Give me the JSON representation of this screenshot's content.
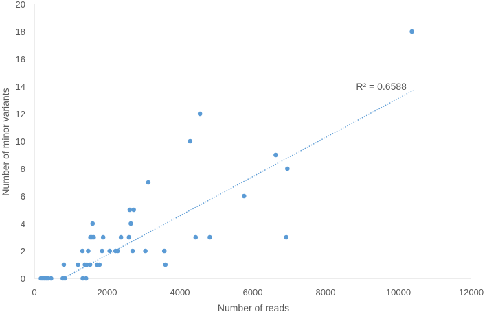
{
  "chart_data": {
    "type": "scatter",
    "xlabel": "Number of reads",
    "ylabel": "Number of minor variants",
    "xlim": [
      0,
      12000
    ],
    "ylim": [
      0,
      20
    ],
    "x_ticks": [
      0,
      2000,
      4000,
      6000,
      8000,
      10000,
      12000
    ],
    "y_ticks": [
      0,
      2,
      4,
      6,
      8,
      10,
      12,
      14,
      16,
      18,
      20
    ],
    "grid": false,
    "colors": {
      "points": "#5b9bd5",
      "trendline": "#5b9bd5",
      "axis": "#d9d9d9",
      "text": "#595959"
    },
    "series": [
      {
        "points": [
          [
            180,
            0
          ],
          [
            230,
            0
          ],
          [
            280,
            0
          ],
          [
            330,
            0
          ],
          [
            380,
            0
          ],
          [
            460,
            0
          ],
          [
            780,
            0
          ],
          [
            840,
            0
          ],
          [
            810,
            1
          ],
          [
            1200,
            1
          ],
          [
            1320,
            2
          ],
          [
            1330,
            0
          ],
          [
            1390,
            1
          ],
          [
            1420,
            0
          ],
          [
            1440,
            1
          ],
          [
            1480,
            2
          ],
          [
            1530,
            1
          ],
          [
            1540,
            3
          ],
          [
            1580,
            3
          ],
          [
            1600,
            4
          ],
          [
            1630,
            3
          ],
          [
            1720,
            1
          ],
          [
            1790,
            1
          ],
          [
            1860,
            2
          ],
          [
            1890,
            3
          ],
          [
            2070,
            2
          ],
          [
            2230,
            2
          ],
          [
            2290,
            2
          ],
          [
            2380,
            3
          ],
          [
            2600,
            3
          ],
          [
            2620,
            5
          ],
          [
            2650,
            4
          ],
          [
            2700,
            2
          ],
          [
            2730,
            5
          ],
          [
            3050,
            2
          ],
          [
            3130,
            7
          ],
          [
            3570,
            2
          ],
          [
            3600,
            1
          ],
          [
            4280,
            10
          ],
          [
            4430,
            3
          ],
          [
            4550,
            12
          ],
          [
            4820,
            3
          ],
          [
            5760,
            6
          ],
          [
            6630,
            9
          ],
          [
            6920,
            3
          ],
          [
            6950,
            8
          ],
          [
            10370,
            18
          ]
        ]
      }
    ],
    "trendline": {
      "type": "linear",
      "x_range": [
        800,
        10400
      ],
      "y_range": [
        0,
        13.7
      ]
    },
    "annotation": {
      "text": "R² = 0.6588",
      "x": 8800,
      "y": 13.7
    }
  }
}
